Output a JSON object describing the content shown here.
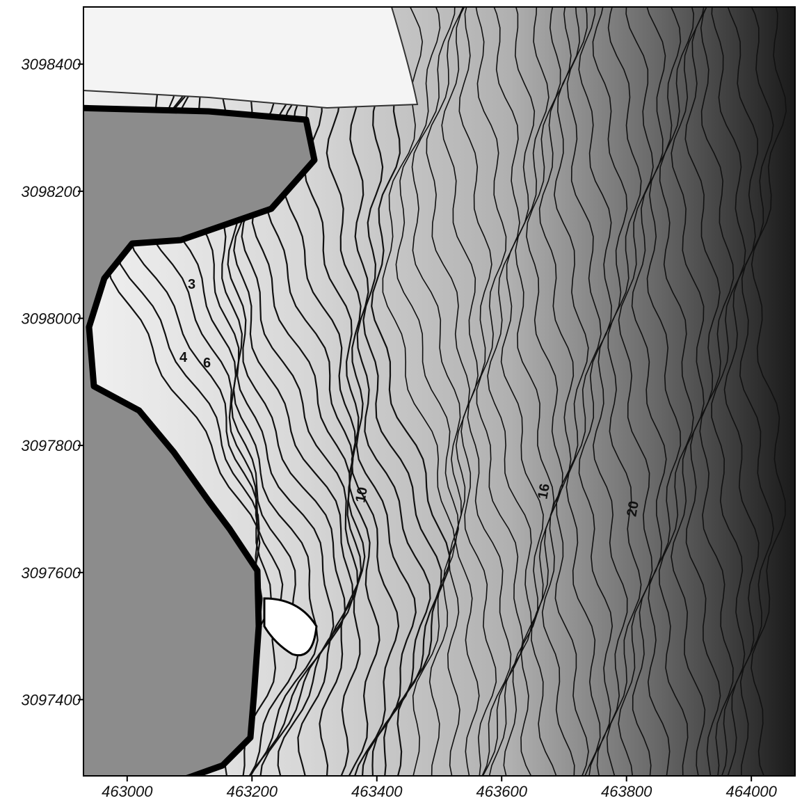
{
  "map": {
    "xlim": [
      462930,
      464070
    ],
    "ylim": [
      3097280,
      3098490
    ],
    "xticks": [
      463000,
      463200,
      463400,
      463600,
      463800,
      464000
    ],
    "yticks": [
      3097400,
      3097600,
      3097800,
      3098000,
      3098200,
      3098400
    ],
    "contour_labels": [
      "3",
      "4",
      "6",
      "10",
      "16",
      "20"
    ]
  }
}
